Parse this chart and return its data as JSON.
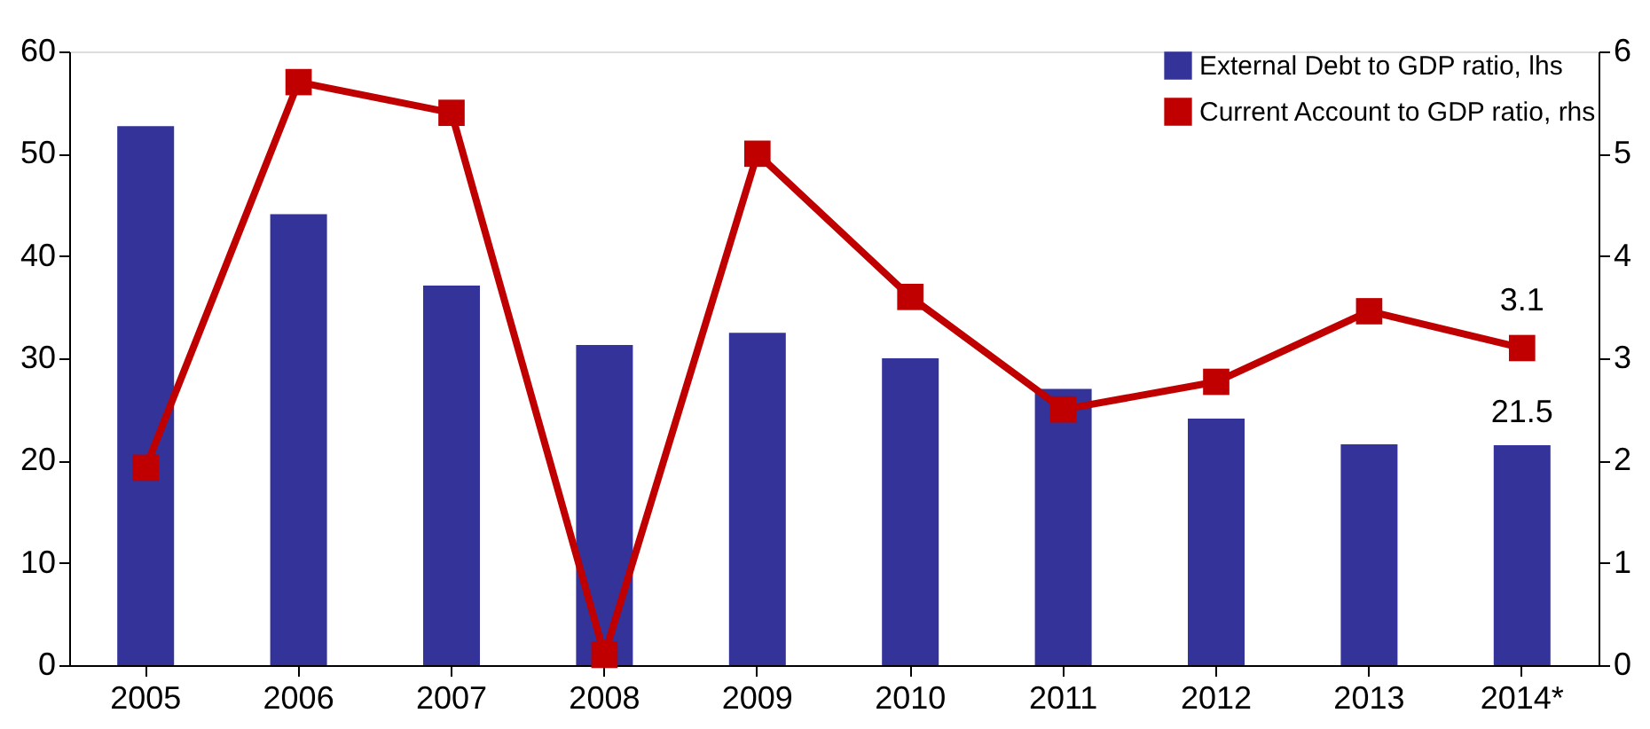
{
  "chart_data": {
    "type": "bar",
    "categories": [
      "2005",
      "2006",
      "2007",
      "2008",
      "2009",
      "2010",
      "2011",
      "2012",
      "2013",
      "2014*"
    ],
    "series": [
      {
        "name": "External Debt to GDP ratio, lhs",
        "color": "#333399",
        "values": [
          52.7,
          44.1,
          37.1,
          31.3,
          32.5,
          30.0,
          27.0,
          24.1,
          21.6,
          21.5
        ],
        "value_labels": [
          null,
          null,
          null,
          null,
          null,
          null,
          null,
          null,
          null,
          "21.5"
        ]
      },
      {
        "name": "Current Account to GDP ratio, rhs",
        "type": "line",
        "axis": "y2",
        "color": "#c00000",
        "marker": "square",
        "line_style": "solid",
        "values": [
          1.93,
          5.7,
          5.4,
          0.1,
          5.0,
          3.6,
          2.5,
          2.77,
          3.46,
          3.1
        ],
        "value_labels": [
          null,
          null,
          null,
          null,
          null,
          null,
          null,
          null,
          null,
          "3.1"
        ]
      }
    ],
    "ylim": [
      0,
      60
    ],
    "yticks": [
      0,
      10,
      20,
      30,
      40,
      50,
      60
    ],
    "y2lim": [
      0,
      6
    ],
    "y2ticks": [
      0,
      1,
      2,
      3,
      4,
      5,
      6
    ],
    "grid": false,
    "legend": "top right"
  }
}
